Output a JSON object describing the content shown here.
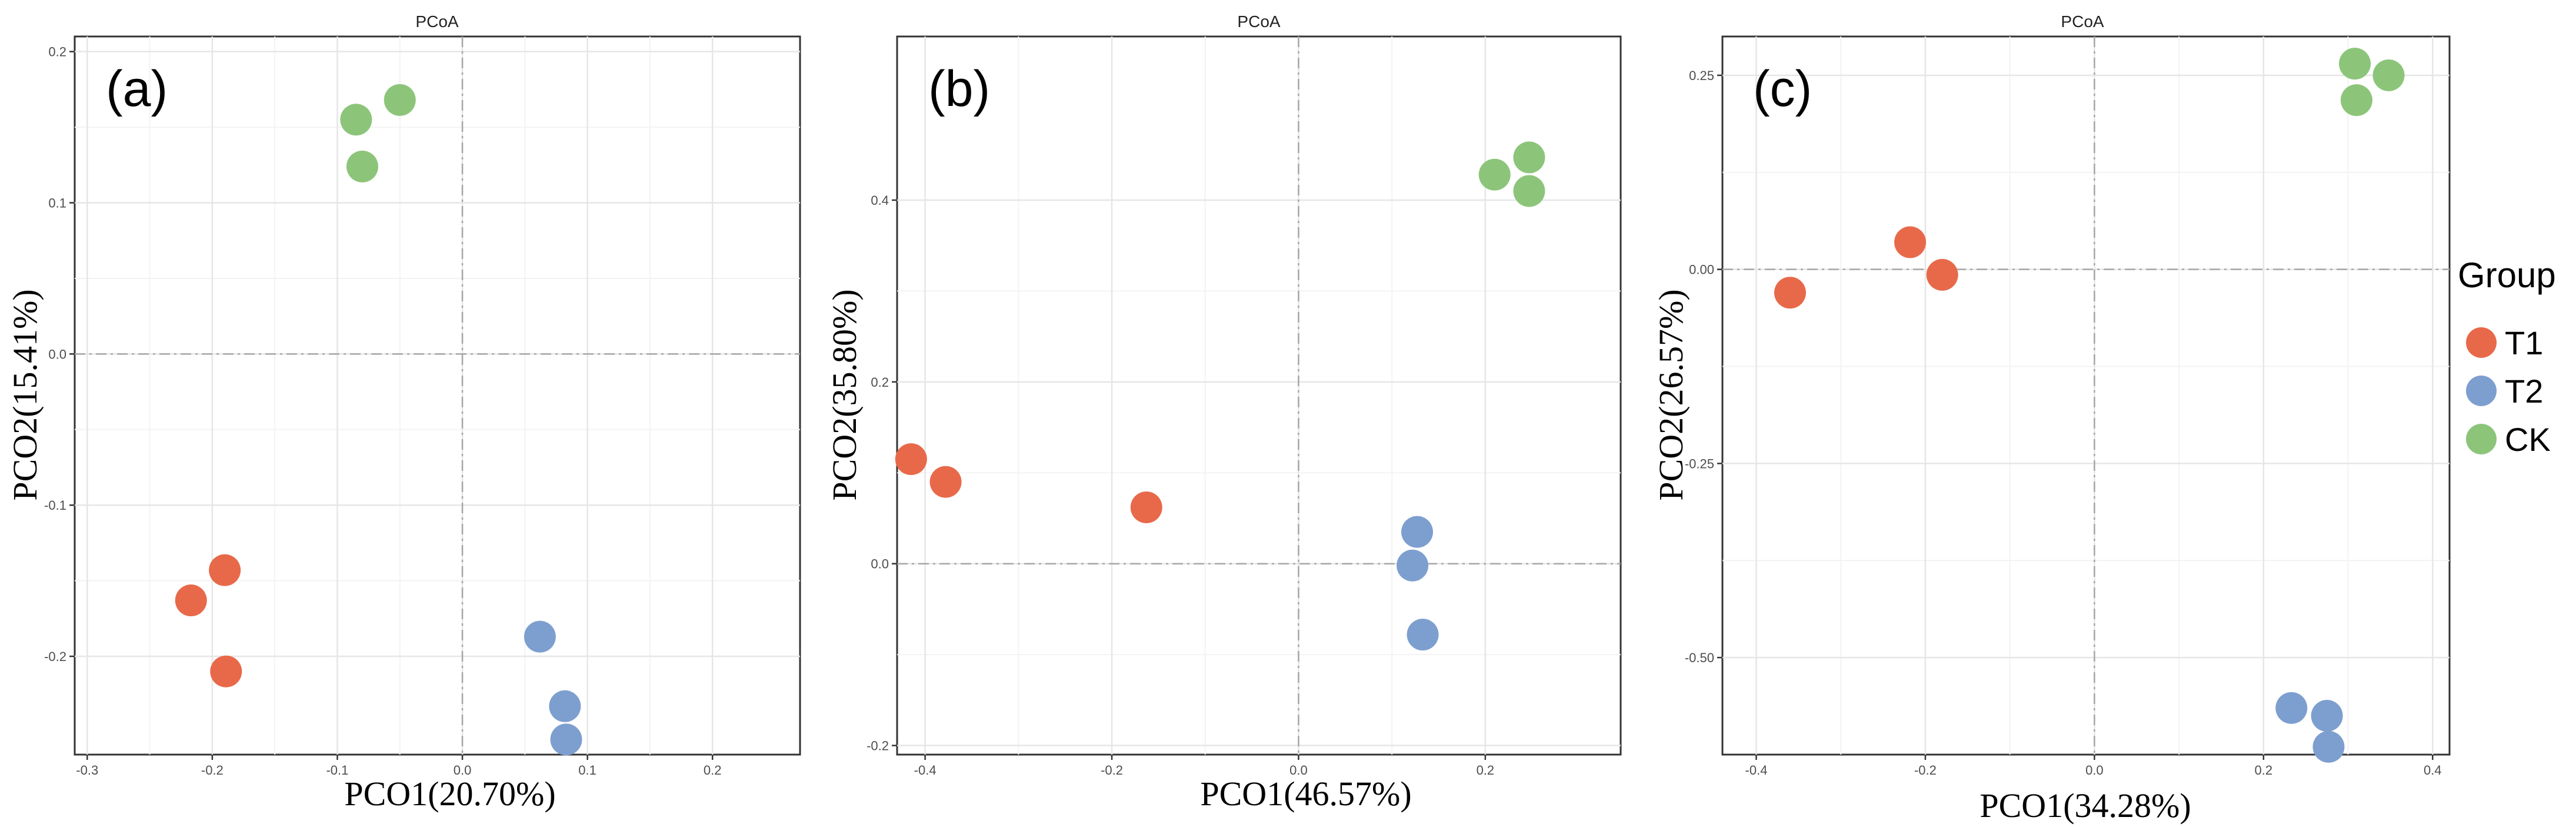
{
  "chart_data": [
    {
      "type": "scatter",
      "title": "PCoA",
      "panel_label": "(a)",
      "xlabel": "PCO1(20.70%)",
      "ylabel": "PCO2(15.41%)",
      "xlim": [
        -0.31,
        0.27
      ],
      "ylim": [
        -0.265,
        0.21
      ],
      "xticks": [
        -0.3,
        -0.2,
        -0.1,
        0.0,
        0.1,
        0.2
      ],
      "xtick_labels": [
        "-0.3",
        "-0.2",
        "-0.1",
        "0.0",
        "0.1",
        "0.2"
      ],
      "yticks": [
        -0.2,
        -0.1,
        0.0,
        0.1,
        0.2
      ],
      "ytick_labels": [
        "-0.2",
        "-0.1",
        "0.0",
        "0.1",
        "0.2"
      ],
      "series": [
        {
          "name": "T1",
          "points": [
            [
              -0.19,
              -0.143
            ],
            [
              -0.217,
              -0.163
            ],
            [
              -0.189,
              -0.21
            ]
          ]
        },
        {
          "name": "T2",
          "points": [
            [
              0.062,
              -0.187
            ],
            [
              0.082,
              -0.233
            ],
            [
              0.083,
              -0.255
            ]
          ]
        },
        {
          "name": "CK",
          "points": [
            [
              -0.085,
              0.155
            ],
            [
              -0.05,
              0.168
            ],
            [
              -0.08,
              0.124
            ]
          ]
        }
      ]
    },
    {
      "type": "scatter",
      "title": "PCoA",
      "panel_label": "(b)",
      "xlabel": "PCO1(46.57%)",
      "ylabel": "PCO2(35.80%)",
      "xlim": [
        -0.43,
        0.345
      ],
      "ylim": [
        -0.21,
        0.58
      ],
      "xticks": [
        -0.4,
        -0.2,
        0.0,
        0.2
      ],
      "xtick_labels": [
        "-0.4",
        "-0.2",
        "0.0",
        "0.2"
      ],
      "yticks": [
        -0.2,
        0.0,
        0.2,
        0.4
      ],
      "ytick_labels": [
        "-0.2",
        "0.0",
        "0.2",
        "0.4"
      ],
      "series": [
        {
          "name": "T1",
          "points": [
            [
              -0.415,
              0.115
            ],
            [
              -0.378,
              0.09
            ],
            [
              -0.163,
              0.062
            ]
          ]
        },
        {
          "name": "T2",
          "points": [
            [
              0.127,
              0.035
            ],
            [
              0.122,
              -0.002
            ],
            [
              0.133,
              -0.078
            ]
          ]
        },
        {
          "name": "CK",
          "points": [
            [
              0.21,
              0.428
            ],
            [
              0.247,
              0.447
            ],
            [
              0.247,
              0.41
            ]
          ]
        }
      ]
    },
    {
      "type": "scatter",
      "title": "PCoA",
      "panel_label": "(c)",
      "xlabel": "PCO1(34.28%)",
      "ylabel": "PCO2(26.57%)",
      "xlim": [
        -0.44,
        0.42
      ],
      "ylim": [
        -0.625,
        0.3
      ],
      "xticks": [
        -0.4,
        -0.2,
        0.0,
        0.2,
        0.4
      ],
      "xtick_labels": [
        "-0.4",
        "-0.2",
        "0.0",
        "0.2",
        "0.4"
      ],
      "yticks": [
        -0.5,
        -0.25,
        0.0,
        0.25
      ],
      "ytick_labels": [
        "-0.50",
        "-0.25",
        "0.00",
        "0.25"
      ],
      "series": [
        {
          "name": "T1",
          "points": [
            [
              -0.36,
              -0.03
            ],
            [
              -0.218,
              0.035
            ],
            [
              -0.18,
              -0.007
            ]
          ]
        },
        {
          "name": "T2",
          "points": [
            [
              0.233,
              -0.565
            ],
            [
              0.275,
              -0.575
            ],
            [
              0.277,
              -0.615
            ]
          ]
        },
        {
          "name": "CK",
          "points": [
            [
              0.308,
              0.265
            ],
            [
              0.31,
              0.218
            ],
            [
              0.348,
              0.25
            ]
          ]
        }
      ]
    }
  ],
  "legend": {
    "title": "Group",
    "items": [
      {
        "label": "T1",
        "color": "#E8694A"
      },
      {
        "label": "T2",
        "color": "#7D9FCF"
      },
      {
        "label": "CK",
        "color": "#8CC57A"
      }
    ]
  },
  "colors": {
    "T1": "#E8694A",
    "T2": "#7D9FCF",
    "CK": "#8CC57A"
  }
}
